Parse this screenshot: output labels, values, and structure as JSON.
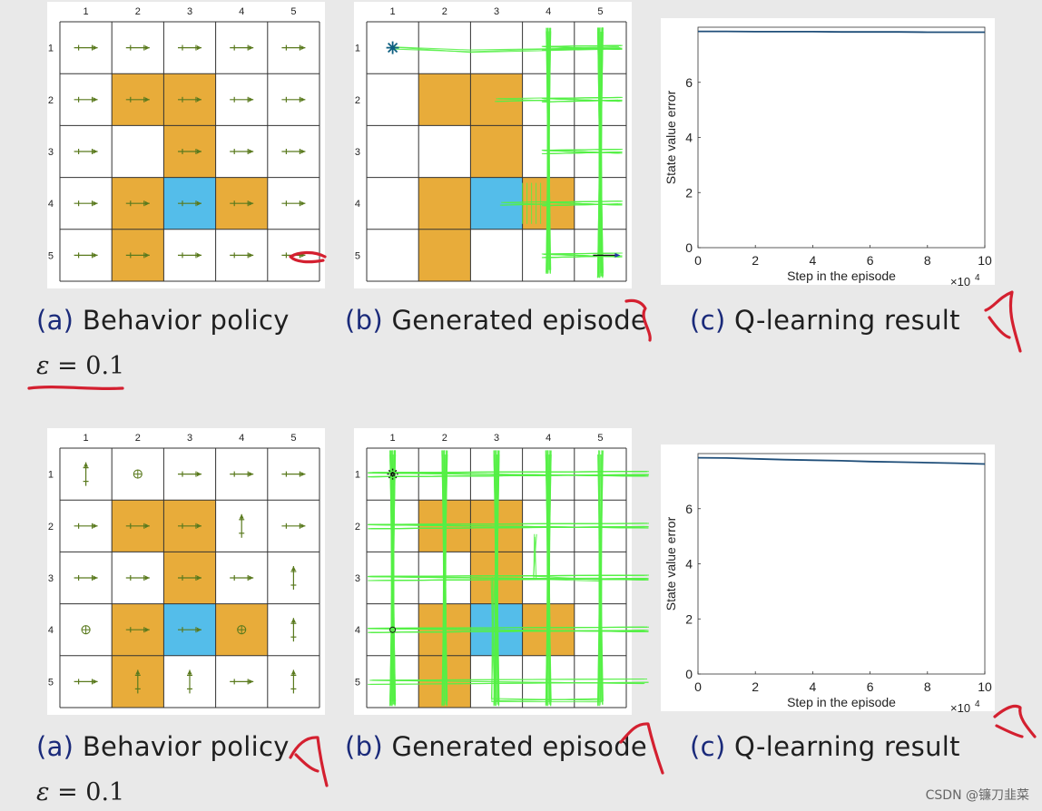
{
  "grid": {
    "col_labels": [
      "1",
      "2",
      "3",
      "4",
      "5"
    ],
    "row_labels": [
      "1",
      "2",
      "3",
      "4",
      "5"
    ],
    "forbidden_cells": [
      [
        2,
        2
      ],
      [
        2,
        3
      ],
      [
        3,
        3
      ],
      [
        4,
        2
      ],
      [
        4,
        4
      ],
      [
        5,
        2
      ]
    ],
    "target_cell": [
      4,
      3
    ],
    "colors": {
      "forbidden": "#e8ac3a",
      "target": "#54bdea",
      "arrow": "#5a7a1e",
      "trajectory": "#55f045",
      "line": "#333333"
    }
  },
  "rows": [
    {
      "policy": {
        "cells": [
          [
            "lr",
            "lr",
            "lr",
            "lr",
            "lr"
          ],
          [
            "lr",
            "lr",
            "lr",
            "lr",
            "lr"
          ],
          [
            "lr",
            "",
            "lr",
            "lr",
            "lr"
          ],
          [
            "lr",
            "lr",
            "lr",
            "lr",
            "lr"
          ],
          [
            "lr",
            "lr",
            "lr",
            "lr",
            "lr"
          ]
        ]
      },
      "episode": {
        "start_marker": "asterisk"
      },
      "captions": {
        "a_label": "(a)",
        "a_text": "Behavior policy",
        "b_label": "(b)",
        "b_text": "Generated episode",
        "c_label": "(c)",
        "c_text": "Q-learning result"
      },
      "epsilon": {
        "symbol": "ε",
        "eq": "= 0.1"
      },
      "chart": {
        "type": "line",
        "x": [
          0,
          1,
          2,
          3,
          4,
          5,
          6,
          7,
          8,
          9,
          10
        ],
        "series": [
          {
            "values": [
              7.85,
              7.85,
              7.84,
              7.84,
              7.84,
              7.83,
              7.83,
              7.83,
              7.82,
              7.82,
              7.82
            ],
            "color": "#1f4e79"
          }
        ],
        "xlim": [
          0,
          10
        ],
        "ylim": [
          0,
          8
        ],
        "xticks": [
          "0",
          "2",
          "4",
          "6",
          "8",
          "10"
        ],
        "yticks": [
          "0",
          "2",
          "4",
          "6"
        ],
        "xlabel": "Step in the episode",
        "ylabel": "State value error",
        "xmult": "×10",
        "xexp": "4"
      }
    },
    {
      "policy": {
        "cells": [
          [
            "ud",
            "c",
            "lr",
            "lr",
            "lr"
          ],
          [
            "lr",
            "lr",
            "lr",
            "ud",
            "lr"
          ],
          [
            "lr",
            "lr",
            "lr",
            "lr",
            "ud"
          ],
          [
            "c",
            "lr",
            "lr",
            "c",
            "ud"
          ],
          [
            "lr",
            "ud",
            "ud",
            "lr",
            "ud"
          ]
        ]
      },
      "episode": {
        "start_marker": "asterisk"
      },
      "captions": {
        "a_label": "(a)",
        "a_text": "Behavior policy",
        "b_label": "(b)",
        "b_text": "Generated episode",
        "c_label": "(c)",
        "c_text": "Q-learning result"
      },
      "epsilon": {
        "symbol": "ε",
        "eq": "= 0.1"
      },
      "chart": {
        "type": "line",
        "x": [
          0,
          1,
          2,
          3,
          4,
          5,
          6,
          7,
          8,
          9,
          10
        ],
        "series": [
          {
            "values": [
              7.85,
              7.84,
              7.81,
              7.78,
              7.76,
              7.74,
              7.71,
              7.69,
              7.67,
              7.65,
              7.62
            ],
            "color": "#1f4e79"
          }
        ],
        "xlim": [
          0,
          10
        ],
        "ylim": [
          0,
          8
        ],
        "xticks": [
          "0",
          "2",
          "4",
          "6",
          "8",
          "10"
        ],
        "yticks": [
          "0",
          "2",
          "4",
          "6"
        ],
        "xlabel": "Step in the episode",
        "ylabel": "State value error",
        "xmult": "×10",
        "xexp": "4"
      }
    }
  ],
  "watermark": "CSDN @镰刀韭菜",
  "annotation_color": "#d42030"
}
